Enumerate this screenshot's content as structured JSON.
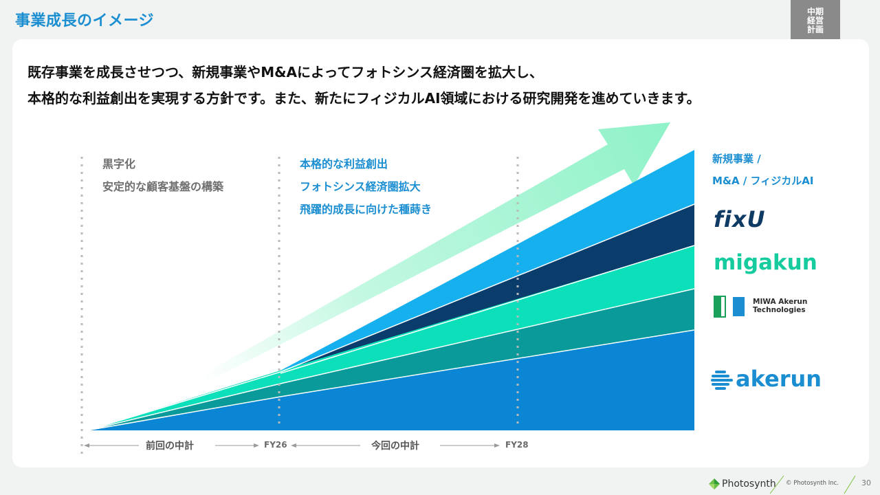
{
  "page_title": "事業成長のイメージ",
  "corner_tab": [
    "中期",
    "経営",
    "計画"
  ],
  "headline": {
    "line1": "既存事業を成長させつつ、新規事業やM&Aによってフォトシンス経済圏を拡大し、",
    "line2": "本格的な利益創出を実現する方針です。また、新たにフィジカルAI領域における研究開発を進めていきます。"
  },
  "phase_previous": [
    "黒字化",
    "安定的な顧客基盤の構築"
  ],
  "phase_current": [
    "本格的な利益創出",
    "フォトシンス経済圏拡大",
    "飛躍的成長に向けた種蒔き"
  ],
  "legend": {
    "title_lines": [
      "新規事業 /",
      "M&A / フィジカルAI"
    ],
    "fixu": "fixU",
    "migakun": "migakun",
    "miwa": [
      "MIWA Akerun",
      "Technologies"
    ],
    "akerun": "akerun"
  },
  "axis": {
    "previous_plan": "前回の中計",
    "fy26": "FY26",
    "current_plan": "今回の中計",
    "fy28": "FY28"
  },
  "colors": {
    "akerun": "#0a86d4",
    "miwa": "#0a9a9a",
    "migakun": "#0be0bb",
    "fixu": "#0a3d6b",
    "new_business": "#17b0ee",
    "arrow": "#8ff2c8",
    "title_blue": "#1b8ed1"
  },
  "footer": {
    "brand": "Photosynth",
    "copyright": "© Photosynth Inc.",
    "page": "30"
  }
}
